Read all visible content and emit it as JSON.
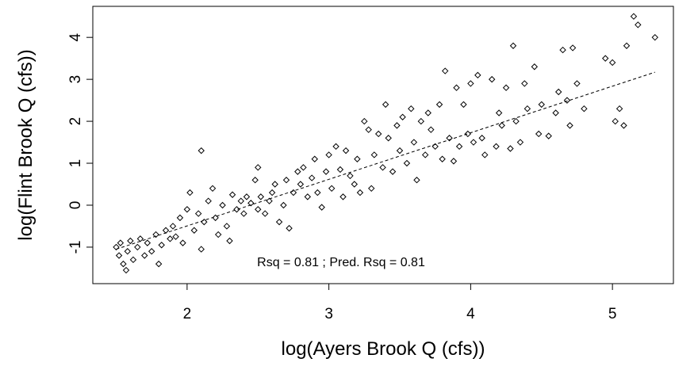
{
  "chart_data": {
    "type": "scatter",
    "x_label": "log(Ayers Brook Q (cfs))",
    "y_label": "log(Flint Brook Q (cfs))",
    "annotation": "Rsq = 0.81 ; Pred. Rsq = 0.81",
    "xlim": [
      1.335,
      5.43
    ],
    "ylim": [
      -1.87,
      4.74
    ],
    "xticks": [
      2,
      3,
      4,
      5
    ],
    "yticks": [
      -1,
      0,
      1,
      2,
      3,
      4
    ],
    "grid": false,
    "color": "#000000",
    "x": [
      1.5,
      1.52,
      1.53,
      1.55,
      1.57,
      1.58,
      1.6,
      1.62,
      1.65,
      1.67,
      1.7,
      1.72,
      1.75,
      1.78,
      1.8,
      1.82,
      1.85,
      1.88,
      1.9,
      1.92,
      1.95,
      1.97,
      2.0,
      2.02,
      2.05,
      2.08,
      2.1,
      2.1,
      2.12,
      2.15,
      2.18,
      2.2,
      2.22,
      2.25,
      2.28,
      2.3,
      2.32,
      2.35,
      2.38,
      2.4,
      2.42,
      2.45,
      2.48,
      2.5,
      2.5,
      2.52,
      2.55,
      2.58,
      2.6,
      2.62,
      2.65,
      2.68,
      2.7,
      2.72,
      2.75,
      2.78,
      2.8,
      2.82,
      2.85,
      2.88,
      2.9,
      2.92,
      2.95,
      2.98,
      3.0,
      3.02,
      3.05,
      3.08,
      3.1,
      3.12,
      3.15,
      3.18,
      3.2,
      3.22,
      3.25,
      3.28,
      3.3,
      3.32,
      3.35,
      3.38,
      3.4,
      3.42,
      3.45,
      3.48,
      3.5,
      3.52,
      3.55,
      3.58,
      3.6,
      3.62,
      3.65,
      3.68,
      3.7,
      3.72,
      3.75,
      3.78,
      3.8,
      3.82,
      3.85,
      3.88,
      3.9,
      3.92,
      3.95,
      3.98,
      4.0,
      4.02,
      4.05,
      4.08,
      4.1,
      4.15,
      4.18,
      4.2,
      4.22,
      4.25,
      4.28,
      4.3,
      4.32,
      4.35,
      4.38,
      4.4,
      4.45,
      4.48,
      4.5,
      4.55,
      4.6,
      4.62,
      4.65,
      4.68,
      4.7,
      4.72,
      4.75,
      4.8,
      4.95,
      5.0,
      5.02,
      5.05,
      5.08,
      5.1,
      5.15,
      5.18,
      5.3
    ],
    "values": [
      -1.0,
      -1.2,
      -0.9,
      -1.4,
      -1.55,
      -1.1,
      -0.85,
      -1.3,
      -1.0,
      -0.8,
      -1.2,
      -0.9,
      -1.1,
      -0.7,
      -1.4,
      -0.95,
      -0.6,
      -0.8,
      -0.5,
      -0.75,
      -0.3,
      -0.9,
      -0.1,
      0.3,
      -0.6,
      -0.2,
      1.3,
      -1.05,
      -0.4,
      0.1,
      0.4,
      -0.3,
      -0.7,
      0.0,
      -0.5,
      -0.85,
      0.25,
      -0.1,
      0.1,
      -0.2,
      0.2,
      0.05,
      0.6,
      0.9,
      -0.1,
      0.2,
      -0.2,
      0.1,
      0.3,
      0.5,
      -0.4,
      0.0,
      0.6,
      -0.55,
      0.3,
      0.8,
      0.5,
      0.9,
      0.2,
      0.65,
      1.1,
      0.3,
      -0.05,
      0.8,
      1.2,
      0.4,
      1.4,
      0.85,
      0.2,
      1.3,
      0.7,
      0.5,
      1.1,
      0.3,
      2.0,
      1.8,
      0.4,
      1.2,
      1.7,
      0.9,
      2.4,
      1.6,
      0.8,
      1.9,
      1.3,
      2.1,
      1.0,
      2.3,
      1.5,
      0.6,
      2.0,
      1.2,
      2.2,
      1.8,
      1.4,
      2.4,
      1.1,
      3.2,
      1.6,
      1.05,
      2.8,
      1.4,
      2.4,
      1.7,
      2.9,
      1.5,
      3.1,
      1.6,
      1.2,
      3.0,
      1.4,
      2.2,
      1.9,
      2.8,
      1.35,
      3.8,
      2.0,
      1.5,
      2.9,
      2.3,
      3.3,
      1.7,
      2.4,
      1.65,
      2.2,
      2.7,
      3.7,
      2.5,
      1.9,
      3.75,
      2.9,
      2.3,
      3.5,
      3.4,
      2.0,
      2.3,
      1.9,
      3.8,
      4.5,
      4.3,
      4.0
    ],
    "fit_line": {
      "x": [
        1.5,
        5.3
      ],
      "y": [
        -1.05,
        3.17
      ]
    }
  }
}
